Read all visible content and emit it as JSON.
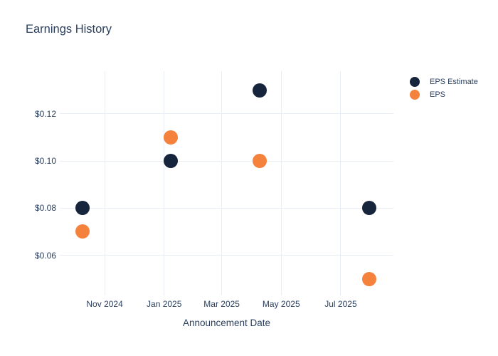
{
  "chart_data": {
    "type": "scatter",
    "title": "Earnings History",
    "xlabel": "Announcement Date",
    "ylabel": "",
    "grid": true,
    "legend_position": "outside-top-right",
    "background_color": "#ffffff",
    "grid_color": "#e9eef4",
    "text_color": "#2a3f5f",
    "xlim": [
      "2024-09-16",
      "2025-08-24"
    ],
    "ylim": [
      0.043,
      0.138
    ],
    "x_ticks": [
      {
        "date": "2024-11-01",
        "label": "Nov 2024"
      },
      {
        "date": "2025-01-01",
        "label": "Jan 2025"
      },
      {
        "date": "2025-03-01",
        "label": "Mar 2025"
      },
      {
        "date": "2025-05-01",
        "label": "May 2025"
      },
      {
        "date": "2025-07-01",
        "label": "Jul 2025"
      }
    ],
    "y_ticks": [
      {
        "value": 0.12,
        "label": "$0.12"
      },
      {
        "value": 0.1,
        "label": "$0.10"
      },
      {
        "value": 0.08,
        "label": "$0.08"
      },
      {
        "value": 0.06,
        "label": "$0.06"
      }
    ],
    "series": [
      {
        "name": "EPS Estimate",
        "color": "#16243c",
        "marker_size": 20,
        "points": [
          {
            "x": "2024-10-09",
            "y": 0.08
          },
          {
            "x": "2025-01-08",
            "y": 0.1
          },
          {
            "x": "2025-04-09",
            "y": 0.13
          },
          {
            "x": "2025-07-30",
            "y": 0.08
          }
        ]
      },
      {
        "name": "EPS",
        "color": "#f4823c",
        "marker_size": 20,
        "points": [
          {
            "x": "2024-10-09",
            "y": 0.07
          },
          {
            "x": "2025-01-08",
            "y": 0.11
          },
          {
            "x": "2025-04-09",
            "y": 0.1
          },
          {
            "x": "2025-07-30",
            "y": 0.05
          }
        ]
      }
    ]
  }
}
